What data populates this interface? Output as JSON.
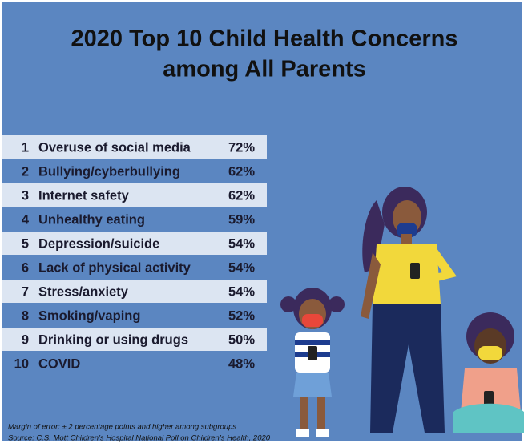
{
  "header": {
    "title_lines": [
      "2020 Top 10 Child Health Concerns",
      "among All Parents"
    ]
  },
  "table": {
    "rows": [
      [
        "1",
        "Overuse of social media",
        "72%"
      ],
      [
        "2",
        "Bullying/cyberbullying",
        "62%"
      ],
      [
        "3",
        "Internet safety",
        "62%"
      ],
      [
        "4",
        "Unhealthy eating",
        "59%"
      ],
      [
        "5",
        "Depression/suicide",
        "54%"
      ],
      [
        "6",
        "Lack of physical activity",
        "54%"
      ],
      [
        "7",
        "Stress/anxiety",
        "54%"
      ],
      [
        "8",
        "Smoking/vaping",
        "52%"
      ],
      [
        "9",
        "Drinking or using drugs",
        "50%"
      ],
      [
        "10",
        "COVID",
        "48%"
      ]
    ]
  },
  "footer": {
    "notes": [
      "Margin of error: ± 2 percentage points and higher among subgroups",
      "Source: C.S. Mott Children’s Hospital National Poll on Children’s Health, 2020"
    ]
  }
}
